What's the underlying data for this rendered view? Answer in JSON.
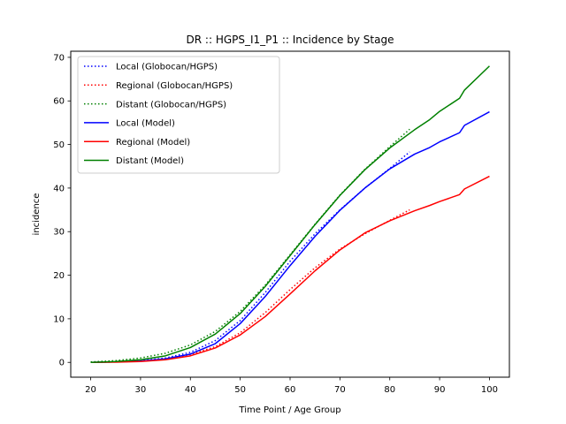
{
  "chart_data": {
    "type": "line",
    "title": "DR :: HGPS_I1_P1 ::  Incidence by Stage",
    "xlabel": "Time Point / Age Group",
    "ylabel": "incidence",
    "xlim": [
      16,
      104
    ],
    "ylim": [
      -3.4,
      71.4
    ],
    "xticks": [
      20,
      30,
      40,
      50,
      60,
      70,
      80,
      90,
      100
    ],
    "yticks": [
      0,
      10,
      20,
      30,
      40,
      50,
      60,
      70
    ],
    "grid": false,
    "legend_position": "top-left",
    "series": [
      {
        "name": "Local (Globocan/HGPS)",
        "color": "#0000ff",
        "style": "dotted",
        "x": [
          20,
          25,
          30,
          35,
          40,
          45,
          50,
          55,
          60,
          65,
          70,
          75,
          80,
          84
        ],
        "y": [
          0,
          0.1,
          0.4,
          1.0,
          2.3,
          5.0,
          9.6,
          16.0,
          23.2,
          29.5,
          35.0,
          40.0,
          44.5,
          48.3
        ]
      },
      {
        "name": "Regional (Globocan/HGPS)",
        "color": "#ff0000",
        "style": "dotted",
        "x": [
          20,
          25,
          30,
          35,
          40,
          45,
          50,
          55,
          60,
          65,
          70,
          75,
          80,
          84
        ],
        "y": [
          0,
          0.1,
          0.3,
          0.8,
          1.8,
          3.6,
          6.8,
          11.4,
          16.7,
          21.7,
          26.0,
          29.5,
          32.6,
          35.0
        ]
      },
      {
        "name": "Distant (Globocan/HGPS)",
        "color": "#008000",
        "style": "dotted",
        "x": [
          20,
          25,
          30,
          35,
          40,
          45,
          50,
          55,
          60,
          65,
          70,
          75,
          80,
          84
        ],
        "y": [
          0.1,
          0.4,
          1.0,
          2.1,
          4.0,
          7.1,
          11.7,
          17.7,
          24.7,
          31.7,
          38.4,
          44.3,
          49.5,
          53.5
        ]
      },
      {
        "name": "Local (Model)",
        "color": "#0000ff",
        "style": "solid",
        "x": [
          20,
          25,
          30,
          35,
          40,
          45,
          50,
          55,
          60,
          65,
          70,
          75,
          80,
          85,
          88,
          90,
          94,
          95,
          100
        ],
        "y": [
          0,
          0.1,
          0.3,
          0.8,
          1.9,
          4.3,
          8.9,
          15.1,
          22.2,
          28.9,
          34.9,
          40.0,
          44.4,
          47.8,
          49.3,
          50.6,
          52.7,
          54.4,
          57.5
        ]
      },
      {
        "name": "Regional (Model)",
        "color": "#ff0000",
        "style": "solid",
        "x": [
          20,
          25,
          30,
          35,
          40,
          45,
          50,
          55,
          60,
          65,
          70,
          75,
          80,
          85,
          88,
          90,
          94,
          95,
          100
        ],
        "y": [
          0,
          0.05,
          0.2,
          0.6,
          1.5,
          3.3,
          6.3,
          10.5,
          15.7,
          21.0,
          25.8,
          29.7,
          32.5,
          34.8,
          36.0,
          36.9,
          38.5,
          39.8,
          42.7
        ]
      },
      {
        "name": "Distant (Model)",
        "color": "#008000",
        "style": "solid",
        "x": [
          20,
          25,
          30,
          35,
          40,
          45,
          50,
          55,
          60,
          65,
          70,
          75,
          80,
          85,
          88,
          90,
          94,
          95,
          100
        ],
        "y": [
          0,
          0.2,
          0.6,
          1.5,
          3.4,
          6.5,
          11.2,
          17.4,
          24.5,
          31.6,
          38.3,
          44.2,
          49.2,
          53.4,
          55.7,
          57.6,
          60.6,
          62.5,
          68.0
        ]
      }
    ]
  }
}
